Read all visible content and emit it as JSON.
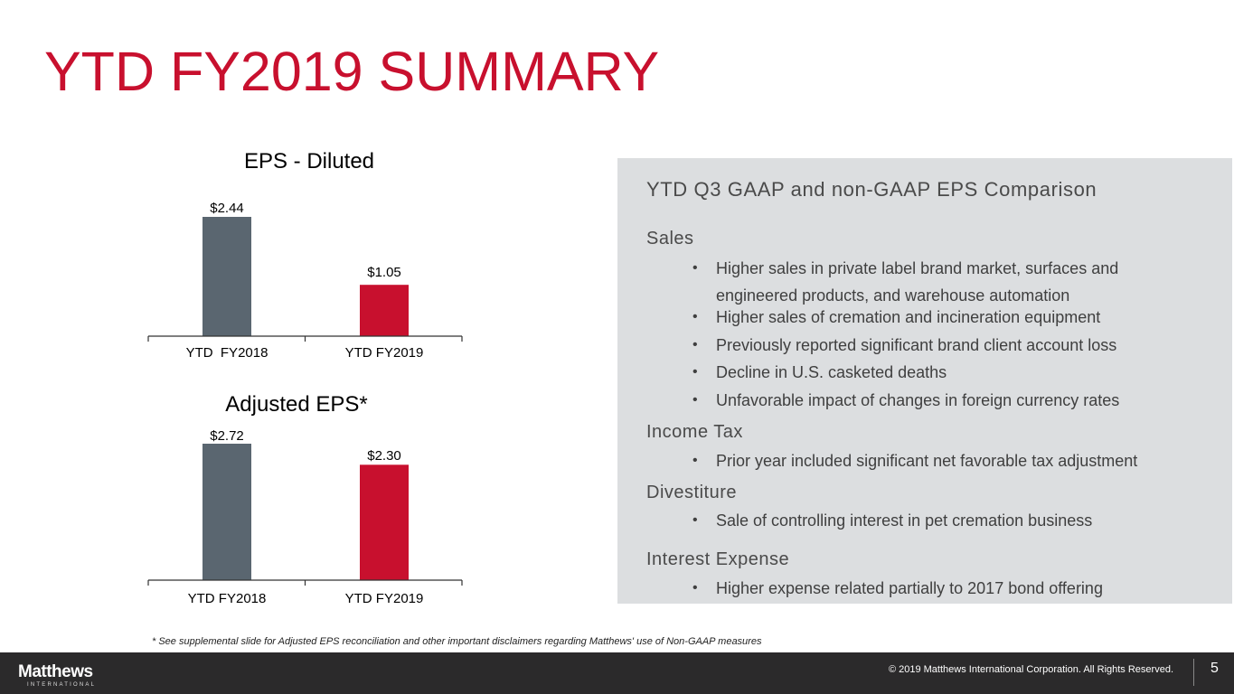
{
  "title": "YTD FY2019 SUMMARY",
  "colors": {
    "accent": "#c8102e",
    "bar_fy2018": "#5a6670",
    "bar_fy2019": "#c8102e",
    "panel_bg": "#dcdee0",
    "footer_bg": "#2b2a2b"
  },
  "chart_data": [
    {
      "type": "bar",
      "title": "EPS - Diluted",
      "categories": [
        "YTD  FY2018",
        "YTD FY2019"
      ],
      "values": [
        2.44,
        1.05
      ],
      "value_labels": [
        "$2.44",
        "$1.05"
      ],
      "series_colors": [
        "#5a6670",
        "#c8102e"
      ],
      "xlabel": "",
      "ylabel": "",
      "ylim": [
        0,
        2.6
      ],
      "grid": false
    },
    {
      "type": "bar",
      "title": "Adjusted EPS*",
      "categories": [
        "YTD FY2018",
        "YTD FY2019"
      ],
      "values": [
        2.72,
        2.3
      ],
      "value_labels": [
        "$2.72",
        "$2.30"
      ],
      "series_colors": [
        "#5a6670",
        "#c8102e"
      ],
      "xlabel": "",
      "ylabel": "",
      "ylim": [
        0,
        2.9
      ],
      "grid": false
    }
  ],
  "panel": {
    "title": "YTD Q3 GAAP and non-GAAP EPS Comparison",
    "sections": [
      {
        "heading": "Sales",
        "bullets": [
          "Higher sales in private label brand market, surfaces and engineered products, and warehouse automation",
          "Higher sales of cremation and incineration equipment",
          "Previously reported significant brand client account loss",
          "Decline in U.S. casketed deaths",
          "Unfavorable impact of changes in foreign currency rates"
        ]
      },
      {
        "heading": "Income Tax",
        "bullets": [
          "Prior year included significant net favorable tax adjustment"
        ]
      },
      {
        "heading": "Divestiture",
        "bullets": [
          "Sale of controlling interest in pet cremation business"
        ]
      },
      {
        "heading": "Interest Expense",
        "bullets": [
          "Higher expense related partially to 2017 bond offering"
        ]
      }
    ],
    "bullet_glyph": "•"
  },
  "footnote": "* See supplemental slide for Adjusted EPS reconciliation and other important disclaimers regarding Matthews' use of Non-GAAP measures",
  "footer": {
    "logo_main": "Matthews",
    "logo_sub": "INTERNATIONAL",
    "copyright": "© 2019 Matthews International Corporation. All Rights Reserved.",
    "page_number": "5"
  }
}
